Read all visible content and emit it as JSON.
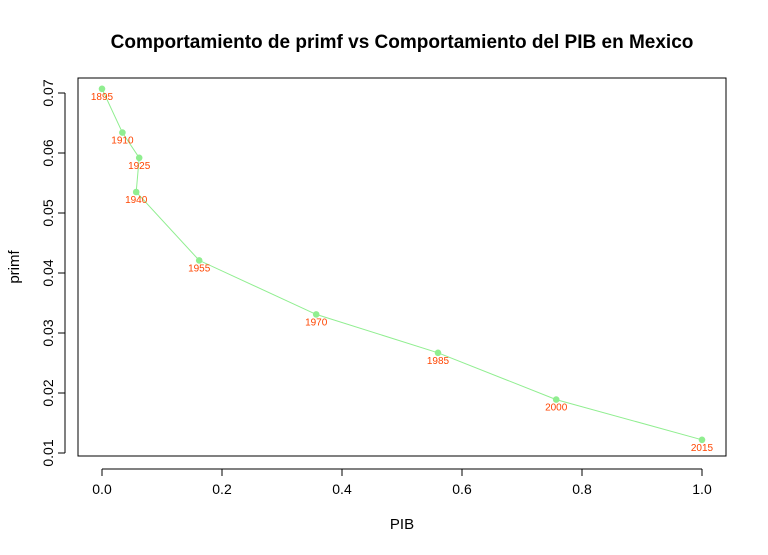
{
  "chart_data": {
    "type": "line",
    "title": "Comportamiento de primf vs Comportamiento del PIB en Mexico",
    "xlabel": "PIB",
    "ylabel": "primf",
    "xlim": [
      -0.04,
      1.04
    ],
    "ylim": [
      0.0095,
      0.0725
    ],
    "x_ticks": [
      "0.0",
      "0.2",
      "0.4",
      "0.6",
      "0.8",
      "1.0"
    ],
    "x_tick_values": [
      0,
      0.2,
      0.4,
      0.6,
      0.8,
      1.0
    ],
    "y_ticks": [
      "0.01",
      "0.02",
      "0.03",
      "0.04",
      "0.05",
      "0.06",
      "0.07"
    ],
    "y_tick_values": [
      0.01,
      0.02,
      0.03,
      0.04,
      0.05,
      0.06,
      0.07
    ],
    "grid": false,
    "series": [
      {
        "x": [
          0.0,
          0.034,
          0.062,
          0.057,
          0.162,
          0.357,
          0.56,
          0.757,
          1.0
        ],
        "y": [
          0.0707,
          0.0634,
          0.0592,
          0.0535,
          0.0421,
          0.0331,
          0.0267,
          0.0189,
          0.0122
        ],
        "labels": [
          "1895",
          "1910",
          "1925",
          "1940",
          "1955",
          "1970",
          "1985",
          "2000",
          "2015"
        ]
      }
    ],
    "colors": {
      "line": "#90ee90",
      "points": "#90ee90",
      "labels": "#ff4500"
    }
  }
}
